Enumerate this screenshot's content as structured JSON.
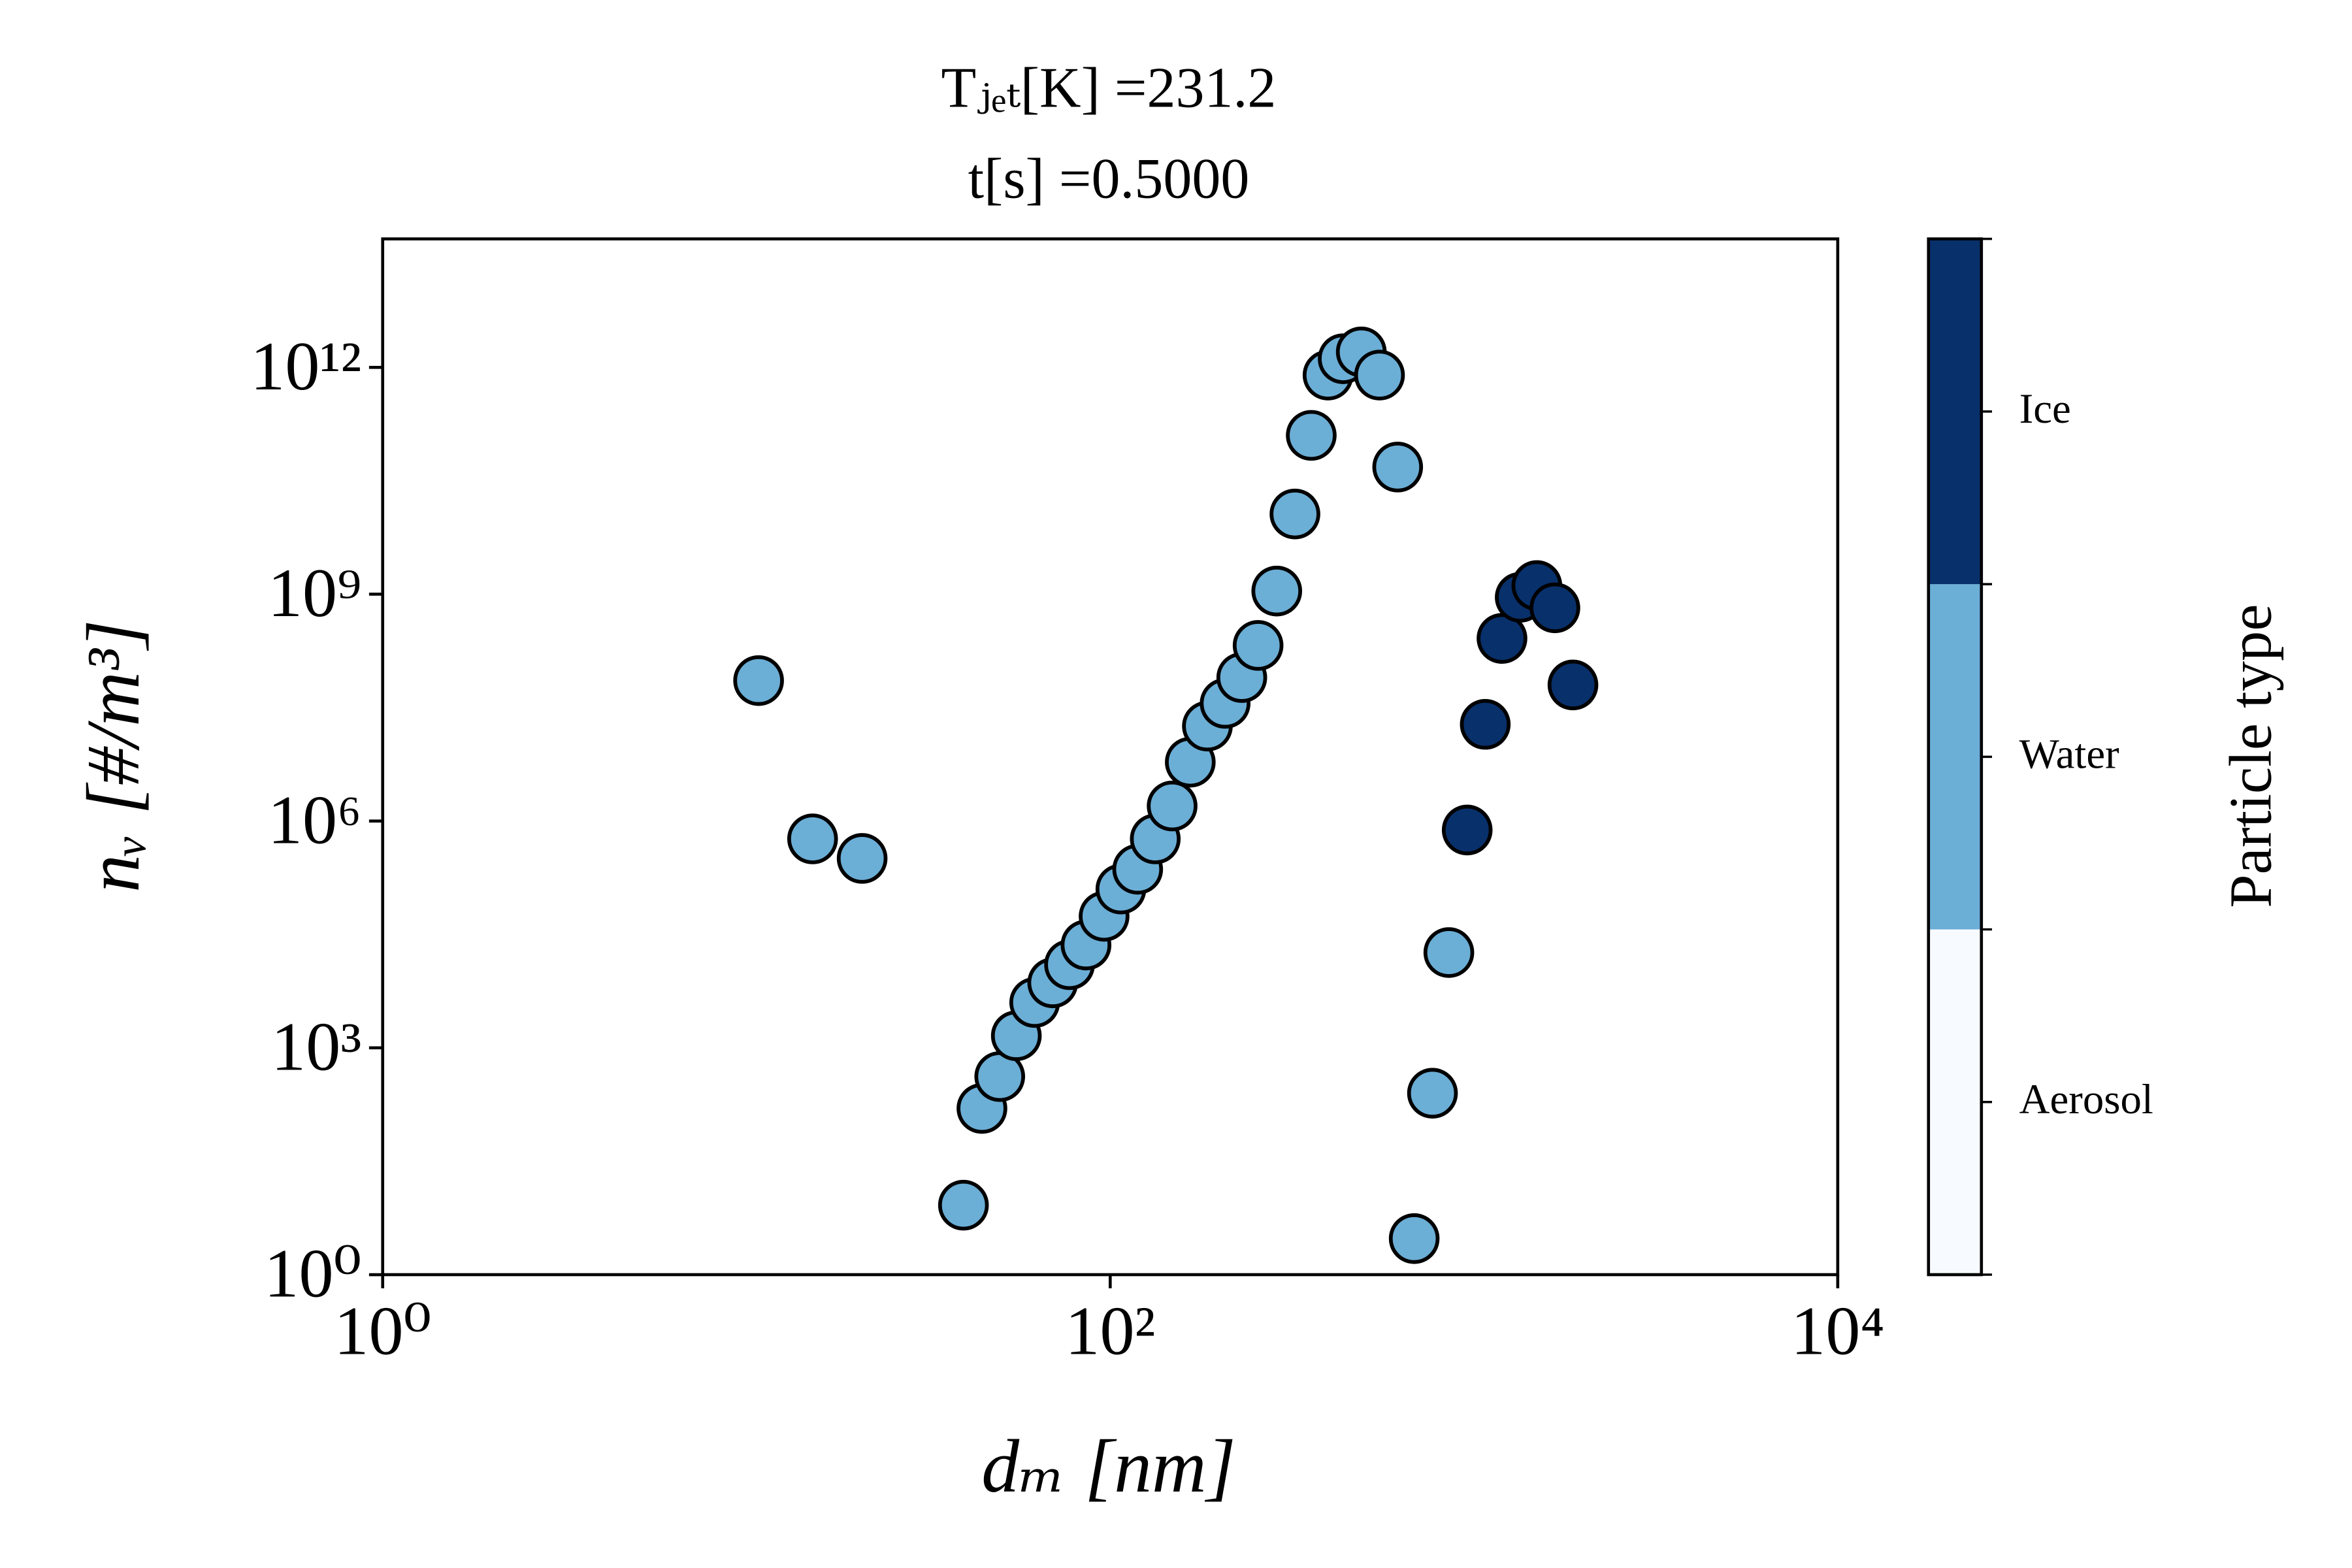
{
  "chart_data": {
    "type": "scatter",
    "title": [
      "Tⱼₑₜ[K] =231.2",
      "t[s] =0.5000"
    ],
    "xlabel": "dₘ [nm]",
    "ylabel": "nᵥ [#/m³]",
    "xscale": "log",
    "yscale": "log",
    "xlim": [
      1,
      10000
    ],
    "ylim": [
      1,
      50000000000000.0
    ],
    "xticks": [
      {
        "value": 1,
        "label": "10⁰"
      },
      {
        "value": 100,
        "label": "10²"
      },
      {
        "value": 10000,
        "label": "10⁴"
      }
    ],
    "yticks": [
      {
        "value": 1,
        "label": "10⁰"
      },
      {
        "value": 1000,
        "label": "10³"
      },
      {
        "value": 1000000,
        "label": "10⁶"
      },
      {
        "value": 1000000000,
        "label": "10⁹"
      },
      {
        "value": 1000000000000,
        "label": "10¹²"
      }
    ],
    "series": [
      {
        "color": "#6baed6",
        "x": [
          10.8,
          15.2,
          20.8,
          39.5,
          44.4,
          49.7,
          55.2,
          62,
          69.5,
          77.3,
          85.8,
          96.2,
          107,
          119,
          133,
          148,
          166,
          185,
          207,
          230,
          255,
          287,
          322,
          357,
          397,
          437,
          490,
          550,
          617,
          685,
          769,
          853
        ],
        "values": [
          72000000.0,
          580000.0,
          320000.0,
          8.3,
          158,
          417,
          1445,
          3981,
          7244,
          12589,
          22909,
          54954,
          126000.0,
          230000.0,
          580000.0,
          1580000.0,
          6000000.0,
          18000000.0,
          36000000.0,
          79000000.0,
          210000000.0,
          1100000000.0,
          11500000000.0,
          126000000000.0,
          790000000000.0,
          1300000000000.0,
          1600000000000.0,
          790000000000.0,
          48000000000.0,
          3.0,
          251,
          18197
        ]
      },
      {
        "color": "#08306b",
        "x": [
          958,
          1074,
          1194,
          1340,
          1489,
          1669,
          1871
        ],
        "values": [
          760000.0,
          19000000.0,
          260000000.0,
          910000000.0,
          1300000000.0,
          660000000.0,
          63000000.0
        ]
      }
    ],
    "colorbar": {
      "label": "Particle type",
      "categories": [
        "Aerosol",
        "Water",
        "Ice"
      ],
      "colors": [
        "#f7fbff",
        "#6baed6",
        "#08306b"
      ]
    }
  }
}
